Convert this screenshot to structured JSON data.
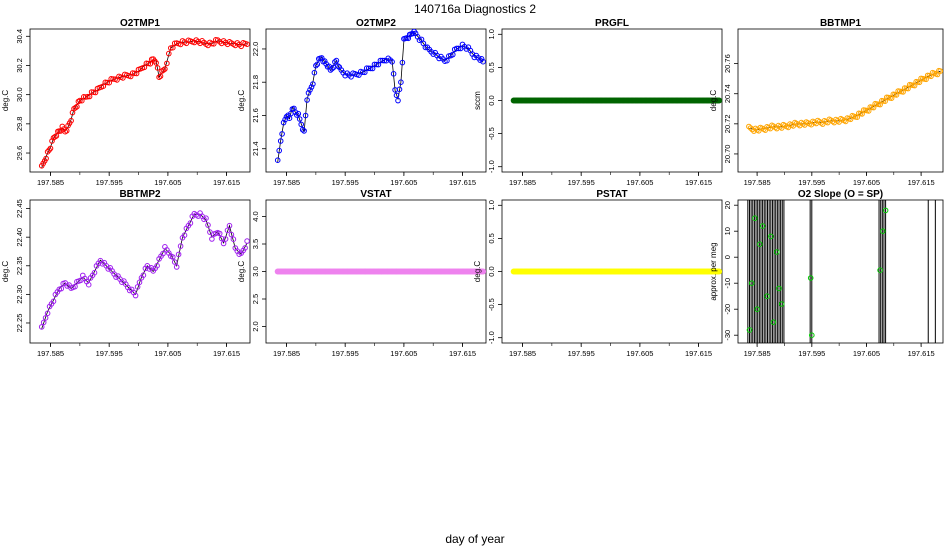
{
  "title": "140716a   Diagnostics 2",
  "xlabel": "day of year",
  "chart_data": [
    {
      "type": "scatter",
      "title": "O2TMP1",
      "ylabel": "deg.C",
      "xlim": [
        197.5815,
        197.619
      ],
      "ylim": [
        29.47,
        30.45
      ],
      "xticks": [
        "197.585",
        "197.595",
        "197.605",
        "197.615"
      ],
      "yticks": [
        "29.6",
        "29.8",
        "30.0",
        "30.2",
        "30.4"
      ],
      "series": [
        {
          "color": "#ff0000",
          "marker": "circle-open",
          "x": [
            197.5835,
            197.584,
            197.5845,
            197.585,
            197.5855,
            197.586,
            197.5865,
            197.587,
            197.5875,
            197.588,
            197.5885,
            197.589,
            197.5895,
            197.59,
            197.591,
            197.592,
            197.593,
            197.594,
            197.595,
            197.596,
            197.597,
            197.598,
            197.599,
            197.6,
            197.601,
            197.602,
            197.6025,
            197.603,
            197.6035,
            197.604,
            197.6045,
            197.6055,
            197.6065,
            197.6075,
            197.6085,
            197.6095,
            197.6105,
            197.6115,
            197.6125,
            197.6135,
            197.6145,
            197.6155,
            197.6165,
            197.6175,
            197.6185
          ],
          "y": [
            29.5,
            29.55,
            29.6,
            29.64,
            29.7,
            29.73,
            29.75,
            29.77,
            29.75,
            29.78,
            29.83,
            29.9,
            29.93,
            29.96,
            29.98,
            30.01,
            30.03,
            30.07,
            30.09,
            30.11,
            30.12,
            30.13,
            30.14,
            30.16,
            30.2,
            30.22,
            30.24,
            30.23,
            30.12,
            30.15,
            30.18,
            30.32,
            30.35,
            30.36,
            30.36,
            30.37,
            30.36,
            30.35,
            30.35,
            30.37,
            30.36,
            30.35,
            30.35,
            30.34,
            30.35
          ]
        }
      ]
    },
    {
      "type": "scatter",
      "title": "O2TMP2",
      "ylabel": "deg.C",
      "xlim": [
        197.5815,
        197.619
      ],
      "ylim": [
        21.26,
        22.12
      ],
      "xticks": [
        "197.585",
        "197.595",
        "197.605",
        "197.615"
      ],
      "yticks": [
        "21.4",
        "21.6",
        "21.8",
        "22.0"
      ],
      "series": [
        {
          "color": "#0000ff",
          "marker": "circle-open",
          "x": [
            197.5835,
            197.584,
            197.5845,
            197.585,
            197.5855,
            197.586,
            197.5865,
            197.587,
            197.5875,
            197.588,
            197.5885,
            197.589,
            197.5895,
            197.59,
            197.5905,
            197.591,
            197.5915,
            197.592,
            197.5925,
            197.593,
            197.5935,
            197.594,
            197.595,
            197.596,
            197.597,
            197.598,
            197.599,
            197.6,
            197.601,
            197.602,
            197.603,
            197.6035,
            197.604,
            197.6045,
            197.605,
            197.6055,
            197.606,
            197.6065,
            197.607,
            197.608,
            197.609,
            197.61,
            197.611,
            197.612,
            197.613,
            197.614,
            197.615,
            197.616,
            197.617,
            197.618,
            197.6185
          ],
          "y": [
            21.32,
            21.45,
            21.55,
            21.6,
            21.58,
            21.65,
            21.62,
            21.6,
            21.55,
            21.5,
            21.7,
            21.75,
            21.8,
            21.9,
            21.93,
            21.95,
            21.92,
            21.9,
            21.87,
            21.9,
            21.93,
            21.88,
            21.85,
            21.84,
            21.85,
            21.86,
            21.88,
            21.9,
            21.92,
            21.94,
            21.93,
            21.75,
            21.7,
            21.8,
            22.05,
            22.07,
            22.08,
            22.1,
            22.09,
            22.05,
            22.0,
            21.98,
            21.95,
            21.93,
            21.96,
            22.0,
            22.02,
            22.0,
            21.96,
            21.94,
            21.92
          ]
        }
      ]
    },
    {
      "type": "scatter",
      "title": "PRGFL",
      "ylabel": "sccm",
      "xlim": [
        197.5815,
        197.619
      ],
      "ylim": [
        -1.08,
        1.08
      ],
      "xticks": [
        "197.585",
        "197.595",
        "197.605",
        "197.615"
      ],
      "yticks": [
        "-1.0",
        "-0.5",
        "0.0",
        "0.5",
        "1.0"
      ],
      "series": [
        {
          "color": "#006400",
          "marker": "circle-filled",
          "x": [
            197.5835,
            197.6185
          ],
          "y": [
            0.0,
            0.0
          ]
        }
      ]
    },
    {
      "type": "scatter",
      "title": "BBTMP1",
      "ylabel": "deg.C",
      "xlim": [
        197.5815,
        197.619
      ],
      "ylim": [
        20.688,
        20.783
      ],
      "xticks": [
        "197.585",
        "197.595",
        "197.605",
        "197.615"
      ],
      "yticks": [
        "20.70",
        "20.72",
        "20.74",
        "20.76"
      ],
      "series": [
        {
          "color": "#ffa500",
          "marker": "circle-open",
          "x": [
            197.5835,
            197.585,
            197.5865,
            197.588,
            197.5895,
            197.591,
            197.5925,
            197.594,
            197.5955,
            197.597,
            197.5985,
            197.6,
            197.6015,
            197.603,
            197.6045,
            197.606,
            197.6075,
            197.609,
            197.6105,
            197.612,
            197.6135,
            197.615,
            197.6165,
            197.618,
            197.6185
          ],
          "y": [
            20.717,
            20.716,
            20.717,
            20.718,
            20.718,
            20.719,
            20.72,
            20.72,
            20.721,
            20.721,
            20.722,
            20.722,
            20.723,
            20.725,
            20.728,
            20.731,
            20.734,
            20.737,
            20.74,
            20.743,
            20.746,
            20.749,
            20.752,
            20.754,
            20.755
          ]
        }
      ]
    },
    {
      "type": "scatter",
      "title": "BBTMP2",
      "ylabel": "deg.C",
      "xlim": [
        197.5815,
        197.619
      ],
      "ylim": [
        22.215,
        22.465
      ],
      "xticks": [
        "197.585",
        "197.595",
        "197.605",
        "197.615"
      ],
      "yticks": [
        "22.25",
        "22.30",
        "22.35",
        "22.40",
        "22.45"
      ],
      "series": [
        {
          "color": "#a020f0",
          "marker": "circle-open",
          "x": [
            197.5835,
            197.5845,
            197.5855,
            197.5865,
            197.5875,
            197.5885,
            197.5895,
            197.5905,
            197.5915,
            197.5925,
            197.5935,
            197.5945,
            197.5955,
            197.5965,
            197.5975,
            197.5985,
            197.5995,
            197.6005,
            197.6015,
            197.6025,
            197.6035,
            197.6045,
            197.6055,
            197.6065,
            197.6075,
            197.6085,
            197.6095,
            197.6105,
            197.6115,
            197.6125,
            197.6135,
            197.6145,
            197.6155,
            197.6165,
            197.6175,
            197.6185
          ],
          "y": [
            22.24,
            22.27,
            22.29,
            22.31,
            22.32,
            22.31,
            22.32,
            22.33,
            22.32,
            22.34,
            22.36,
            22.35,
            22.34,
            22.33,
            22.32,
            22.31,
            22.3,
            22.33,
            22.35,
            22.34,
            22.36,
            22.38,
            22.37,
            22.35,
            22.4,
            22.42,
            22.44,
            22.44,
            22.43,
            22.4,
            22.41,
            22.39,
            22.42,
            22.38,
            22.37,
            22.39
          ]
        }
      ]
    },
    {
      "type": "scatter",
      "title": "VSTAT",
      "ylabel": "deg.C",
      "xlim": [
        197.5815,
        197.619
      ],
      "ylim": [
        1.7,
        4.3
      ],
      "xticks": [
        "197.585",
        "197.595",
        "197.605",
        "197.615"
      ],
      "yticks": [
        "2.0",
        "2.5",
        "3.0",
        "3.5",
        "4.0"
      ],
      "series": [
        {
          "color": "#ee82ee",
          "marker": "circle-filled",
          "x": [
            197.5835,
            197.6185
          ],
          "y": [
            3.0,
            3.0
          ]
        }
      ]
    },
    {
      "type": "scatter",
      "title": "PSTAT",
      "ylabel": "deg.C",
      "xlim": [
        197.5815,
        197.619
      ],
      "ylim": [
        -1.08,
        1.08
      ],
      "xticks": [
        "197.585",
        "197.595",
        "197.605",
        "197.615"
      ],
      "yticks": [
        "-1.0",
        "-0.5",
        "0.0",
        "0.5",
        "1.0"
      ],
      "series": [
        {
          "color": "#ffff00",
          "marker": "circle-filled",
          "x": [
            197.5835,
            197.6185
          ],
          "y": [
            0.0,
            0.0
          ]
        }
      ]
    },
    {
      "type": "scatter",
      "title": "O2 Slope (O = SP)",
      "ylabel": "approx. per meg",
      "xlim": [
        197.5815,
        197.619
      ],
      "ylim": [
        -33,
        22
      ],
      "xticks": [
        "197.585",
        "197.595",
        "197.605",
        "197.615"
      ],
      "yticks": [
        "-30",
        "-20",
        "-10",
        "0",
        "10",
        "20"
      ],
      "series": [
        {
          "color": "#00cc00",
          "marker": "circle-open",
          "x": [
            197.5836,
            197.584,
            197.5846,
            197.585,
            197.5855,
            197.586,
            197.5868,
            197.5875,
            197.588,
            197.5886,
            197.589,
            197.5895,
            197.5948,
            197.595,
            197.6075,
            197.608,
            197.6085
          ],
          "y": [
            -28,
            -10,
            15,
            -20,
            5,
            12,
            -15,
            8,
            -25,
            2,
            -12,
            -18,
            -8,
            -30,
            -5,
            10,
            18
          ]
        }
      ],
      "vlines": [
        197.5833,
        197.5836,
        197.5839,
        197.5842,
        197.5845,
        197.5848,
        197.5851,
        197.5854,
        197.5857,
        197.586,
        197.5863,
        197.5866,
        197.5869,
        197.5872,
        197.5875,
        197.5878,
        197.5881,
        197.5884,
        197.5887,
        197.589,
        197.5893,
        197.5896,
        197.5899,
        197.5947,
        197.595,
        197.6073,
        197.6076,
        197.6079,
        197.6082,
        197.6085,
        197.6163,
        197.6176
      ]
    }
  ]
}
